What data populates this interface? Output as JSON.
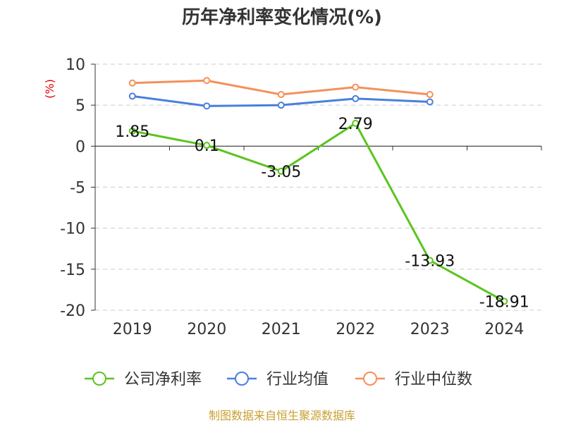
{
  "chart_data": {
    "type": "line",
    "title": "历年净利率变化情况(%)",
    "unit_label": "(%)",
    "categories": [
      "2019",
      "2020",
      "2021",
      "2022",
      "2023",
      "2024"
    ],
    "ylim": [
      -20,
      10
    ],
    "yticks": [
      10,
      5,
      0,
      -5,
      -10,
      -15,
      -20
    ],
    "grid": true,
    "legend_position": "bottom",
    "series": [
      {
        "name": "公司净利率",
        "color": "#5cc41e",
        "values": [
          1.85,
          0.1,
          -3.05,
          2.79,
          -13.93,
          -18.91
        ],
        "labels": [
          "1.85",
          "0.1",
          "-3.05",
          "2.79",
          "-13.93",
          "-18.91"
        ]
      },
      {
        "name": "行业均值",
        "color": "#4a7fdc",
        "values": [
          6.1,
          4.9,
          5.0,
          5.8,
          5.4,
          null
        ],
        "labels": []
      },
      {
        "name": "行业中位数",
        "color": "#f5905a",
        "values": [
          7.7,
          8.0,
          6.3,
          7.2,
          6.3,
          null
        ],
        "labels": []
      }
    ],
    "source": "制图数据来自恒生聚源数据库"
  }
}
